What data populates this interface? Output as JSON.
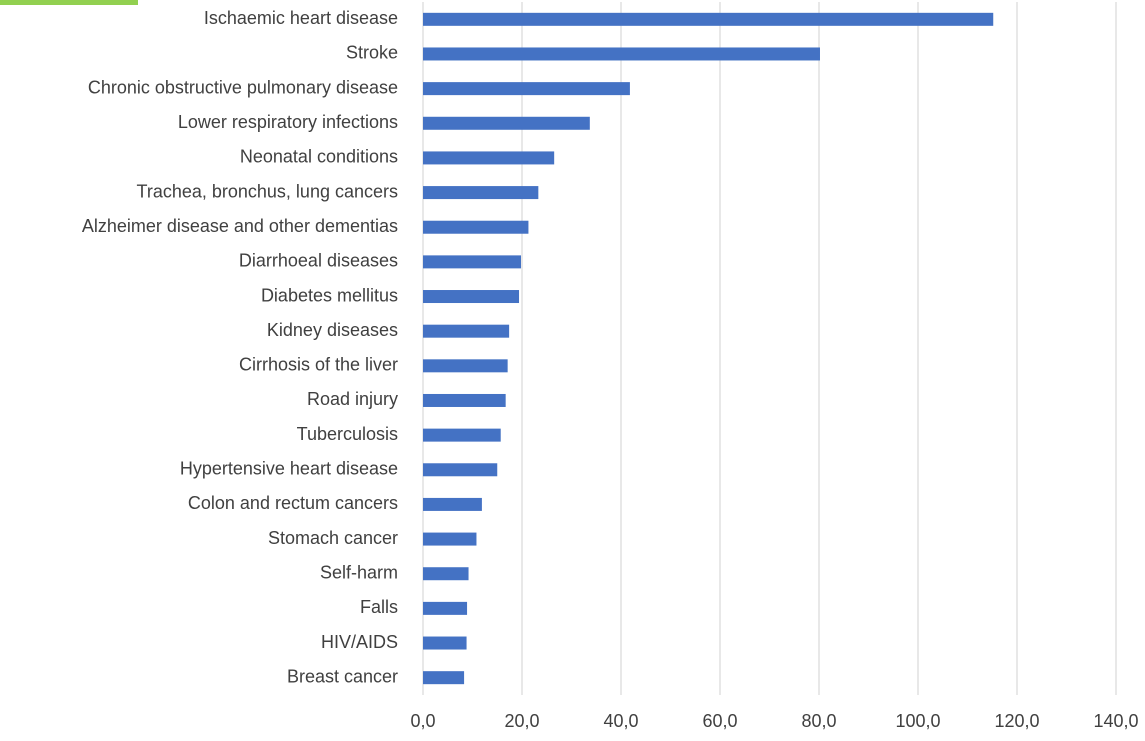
{
  "chart_data": {
    "type": "hbar",
    "categories": [
      "Ischaemic heart disease",
      "Stroke",
      "Chronic obstructive pulmonary disease",
      "Lower respiratory infections",
      "Neonatal conditions",
      "Trachea, bronchus, lung cancers",
      "Alzheimer disease and other dementias",
      "Diarrhoeal diseases",
      "Diabetes mellitus",
      "Kidney diseases",
      "Cirrhosis of the liver",
      "Road injury",
      "Tuberculosis",
      "Hypertensive heart disease",
      "Colon and rectum cancers",
      "Stomach cancer",
      "Self-harm",
      "Falls",
      "HIV/AIDS",
      "Breast cancer"
    ],
    "values": [
      115.2,
      80.2,
      41.8,
      33.7,
      26.5,
      23.3,
      21.3,
      19.8,
      19.4,
      17.4,
      17.1,
      16.7,
      15.7,
      15.0,
      11.9,
      10.8,
      9.2,
      8.9,
      8.8,
      8.3
    ],
    "color": "#4472c4",
    "xlim": [
      0,
      140
    ],
    "xticks": [
      {
        "value": 0,
        "label": "0,0"
      },
      {
        "value": 20,
        "label": "20,0"
      },
      {
        "value": 40,
        "label": "40,0"
      },
      {
        "value": 60,
        "label": "60,0"
      },
      {
        "value": 80,
        "label": "80,0"
      },
      {
        "value": 100,
        "label": "100,0"
      },
      {
        "value": 120,
        "label": "120,0"
      },
      {
        "value": 140,
        "label": "140,0"
      }
    ],
    "grid": true
  }
}
